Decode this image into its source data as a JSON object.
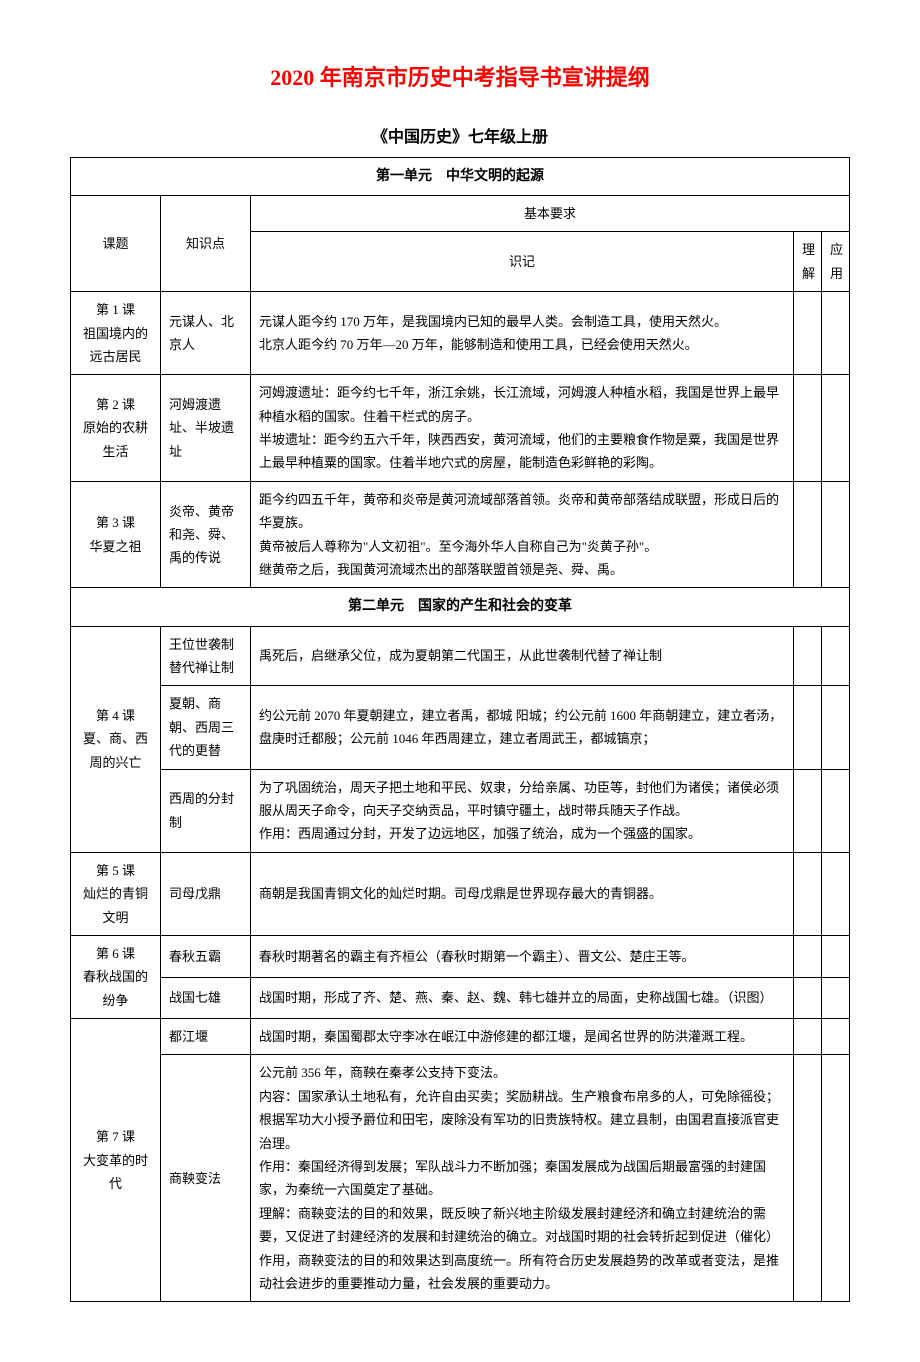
{
  "title": "2020 年南京市历史中考指导书宣讲提纲",
  "subtitle": "《中国历史》七年级上册",
  "headers": {
    "lesson": "课题",
    "point": "知识点",
    "requirement": "基本要求",
    "recall": "识记",
    "understand": "理解",
    "apply": "应用"
  },
  "unit1": {
    "title": "第一单元　中华文明的起源",
    "lesson1": {
      "name": "第 1 课\n祖国境内的远古居民",
      "point": "元谋人、北京人",
      "content": "元谋人距今约 170 万年，是我国境内已知的最早人类。会制造工具，使用天然火。\n北京人距今约 70 万年—20 万年，能够制造和使用工具，已经会使用天然火。"
    },
    "lesson2": {
      "name": "第 2 课\n原始的农耕生活",
      "point": "河姆渡遗址、半坡遗址",
      "content": "河姆渡遗址：距今约七千年，浙江余姚，长江流域，河姆渡人种植水稻，我国是世界上最早种植水稻的国家。住着干栏式的房子。\n半坡遗址：距今约五六千年，陕西西安，黄河流域，他们的主要粮食作物是粟，我国是世界上最早种植粟的国家。住着半地穴式的房屋，能制造色彩鲜艳的彩陶。"
    },
    "lesson3": {
      "name": "第 3 课\n华夏之祖",
      "point": "炎帝、黄帝和尧、舜、禹的传说",
      "content": "距今约四五千年，黄帝和炎帝是黄河流域部落首领。炎帝和黄帝部落结成联盟，形成日后的华夏族。\n黄帝被后人尊称为\"人文初祖\"。至今海外华人自称自己为\"炎黄子孙\"。\n继黄帝之后，我国黄河流域杰出的部落联盟首领是尧、舜、禹。"
    }
  },
  "unit2": {
    "title": "第二单元　国家的产生和社会的变革",
    "lesson4": {
      "name": "第 4 课\n夏、商、西周的兴亡",
      "point1": "王位世袭制替代禅让制",
      "content1": "禹死后，启继承父位，成为夏朝第二代国王，从此世袭制代替了禅让制",
      "point2": "夏朝、商朝、西周三代的更替",
      "content2": "约公元前 2070 年夏朝建立，建立者禹，都城 阳城；约公元前 1600 年商朝建立，建立者汤，盘庚时迁都殷；公元前 1046 年西周建立，建立者周武王，都城镐京；",
      "point3": "西周的分封制",
      "content3": "为了巩固统治，周天子把土地和平民、奴隶，分给亲属、功臣等，封他们为诸侯；诸侯必须服从周天子命令，向天子交纳贡品，平时镇守疆土，战时带兵随天子作战。\n作用：西周通过分封，开发了边远地区，加强了统治，成为一个强盛的国家。"
    },
    "lesson5": {
      "name": "第 5 课\n灿烂的青铜文明",
      "point": "司母戊鼎",
      "content": "商朝是我国青铜文化的灿烂时期。司母戊鼎是世界现存最大的青铜器。"
    },
    "lesson6": {
      "name": "第 6 课\n春秋战国的纷争",
      "point1": "春秋五霸",
      "content1": "春秋时期著名的霸主有齐桓公（春秋时期第一个霸主）、晋文公、楚庄王等。",
      "point2": "战国七雄",
      "content2": "战国时期，形成了齐、楚、燕、秦、赵、魏、韩七雄并立的局面，史称战国七雄。（识图）"
    },
    "lesson7": {
      "name": "第 7 课\n大变革的时代",
      "point1": "都江堰",
      "content1": "战国时期，秦国蜀郡太守李冰在岷江中游修建的都江堰，是闻名世界的防洪灌溉工程。",
      "point2": "商鞅变法",
      "content2": "公元前 356 年，商鞅在秦孝公支持下变法。\n内容：国家承认土地私有，允许自由买卖；奖励耕战。生产粮食布帛多的人，可免除徭役；根据军功大小授予爵位和田宅，废除没有军功的旧贵族特权。建立县制，由国君直接派官吏治理。\n作用：秦国经济得到发展；军队战斗力不断加强；秦国发展成为战国后期最富强的封建国家，为秦统一六国奠定了基础。\n理解：商鞅变法的目的和效果，既反映了新兴地主阶级发展封建经济和确立封建统治的需要，又促进了封建经济的发展和封建统治的确立。对战国时期的社会转折起到促进（催化）作用，商鞅变法的目的和效果达到高度统一。所有符合历史发展趋势的改革或者变法，是推动社会进步的重要推动力量，社会发展的重要动力。"
    }
  }
}
